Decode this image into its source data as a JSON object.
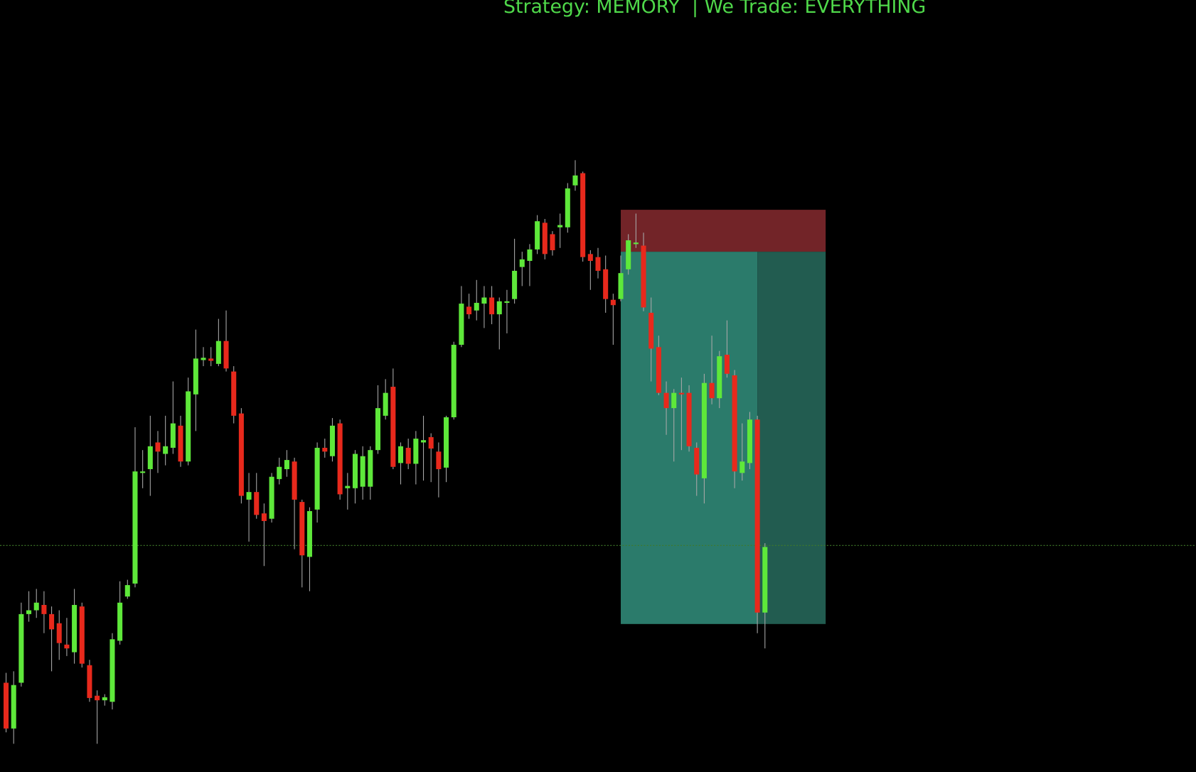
{
  "chart_data": {
    "type": "candlestick",
    "title": "Strategy: MEMORY  | We Trade: EVERYTHING",
    "up_color": "#5ee83a",
    "down_color": "#e8291c",
    "wick_color": "#a8a8a8",
    "title_color": "#4fd84a",
    "xlim": [
      -0.8,
      156.8
    ],
    "ylim": [
      0,
      1012
    ],
    "open": [
      117,
      57,
      117,
      207,
      212,
      219,
      207,
      195,
      167,
      157,
      217,
      140,
      100,
      94,
      92,
      172,
      230,
      247,
      392,
      397,
      432,
      417,
      425,
      454,
      407,
      495,
      540,
      542,
      535,
      565,
      525,
      470,
      357,
      367,
      339,
      332,
      384,
      397,
      407,
      354,
      282,
      344,
      425,
      414,
      457,
      372,
      372,
      374,
      374,
      422,
      467,
      505,
      405,
      425,
      404,
      432,
      439,
      420,
      399,
      465,
      560,
      610,
      605,
      614,
      622,
      600,
      615,
      620,
      662,
      670,
      685,
      720,
      705,
      714,
      714,
      769,
      785,
      679,
      675,
      659,
      619,
      620,
      659,
      692,
      690,
      602,
      557,
      497,
      477,
      497,
      497,
      425,
      385,
      510,
      490,
      547,
      520,
      392,
      405,
      462,
      209
    ],
    "high": [
      130,
      132,
      222,
      237,
      240,
      237,
      217,
      212,
      202,
      240,
      222,
      147,
      107,
      102,
      182,
      250,
      252,
      452,
      422,
      467,
      447,
      467,
      512,
      467,
      517,
      580,
      557,
      557,
      594,
      605,
      532,
      477,
      392,
      392,
      352,
      392,
      412,
      422,
      412,
      357,
      347,
      432,
      437,
      464,
      462,
      392,
      422,
      427,
      427,
      507,
      515,
      529,
      432,
      437,
      447,
      467,
      444,
      432,
      467,
      564,
      637,
      627,
      645,
      637,
      637,
      622,
      632,
      699,
      682,
      692,
      730,
      725,
      709,
      732,
      772,
      802,
      787,
      684,
      687,
      677,
      627,
      677,
      705,
      732,
      707,
      622,
      572,
      512,
      502,
      517,
      507,
      432,
      522,
      572,
      552,
      592,
      527,
      457,
      472,
      467,
      300
    ],
    "low": [
      52,
      37,
      112,
      197,
      202,
      182,
      132,
      147,
      152,
      142,
      137,
      92,
      37,
      87,
      82,
      167,
      227,
      242,
      372,
      362,
      392,
      402,
      417,
      400,
      402,
      447,
      532,
      532,
      532,
      525,
      457,
      352,
      302,
      332,
      270,
      327,
      377,
      387,
      292,
      242,
      237,
      327,
      412,
      407,
      357,
      344,
      352,
      357,
      357,
      417,
      462,
      397,
      377,
      397,
      377,
      382,
      380,
      360,
      380,
      462,
      557,
      594,
      592,
      582,
      587,
      554,
      575,
      614,
      637,
      637,
      679,
      672,
      677,
      687,
      707,
      762,
      669,
      632,
      647,
      602,
      560,
      617,
      652,
      687,
      604,
      512,
      494,
      442,
      407,
      422,
      420,
      362,
      352,
      482,
      477,
      517,
      372,
      382,
      397,
      182,
      162
    ],
    "close": [
      57,
      114,
      207,
      212,
      222,
      207,
      187,
      169,
      162,
      219,
      142,
      97,
      94,
      98,
      174,
      222,
      245,
      394,
      394,
      427,
      420,
      427,
      457,
      407,
      499,
      542,
      543,
      539,
      565,
      529,
      467,
      362,
      367,
      337,
      329,
      387,
      400,
      409,
      357,
      284,
      342,
      425,
      420,
      454,
      364,
      375,
      417,
      414,
      422,
      477,
      497,
      400,
      427,
      404,
      437,
      435,
      424,
      397,
      465,
      560,
      614,
      600,
      615,
      622,
      600,
      617,
      617,
      657,
      672,
      685,
      722,
      679,
      684,
      717,
      765,
      782,
      675,
      670,
      657,
      620,
      612,
      654,
      697,
      694,
      609,
      555,
      497,
      477,
      497,
      495,
      427,
      390,
      510,
      490,
      545,
      522,
      394,
      407,
      462,
      209,
      295
    ],
    "price_line": {
      "value": 297,
      "color": "#3f7a2a"
    },
    "position": {
      "stop": 737,
      "entry": 682,
      "target": 194,
      "start": 81,
      "end": 108,
      "split": 99,
      "stop_color": "#722428",
      "target_color": "#2b7b6b",
      "split_color": "#225c50"
    }
  }
}
